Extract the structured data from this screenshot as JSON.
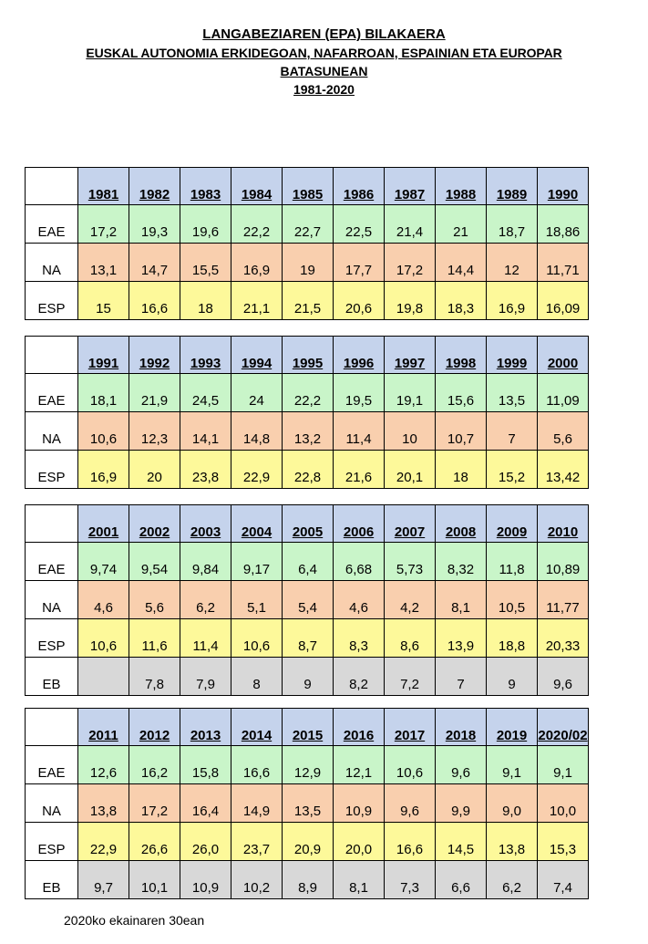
{
  "titles": {
    "line1": "LANGABEZIAREN (EPA) BILAKAERA",
    "line2": "EUSKAL AUTONOMIA ERKIDEGOAN, NAFARROAN, ESPAINIAN ETA EUROPAR",
    "line3": "BATASUNEAN",
    "line4": "1981-2020"
  },
  "tables": [
    {
      "years": [
        "1981",
        "1982",
        "1983",
        "1984",
        "1985",
        "1986",
        "1987",
        "1988",
        "1989",
        "1990"
      ],
      "rows": [
        {
          "label": "EAE",
          "values": [
            "17,2",
            "19,3",
            "19,6",
            "22,2",
            "22,7",
            "22,5",
            "21,4",
            "21",
            "18,7",
            "18,86"
          ]
        },
        {
          "label": "NA",
          "values": [
            "13,1",
            "14,7",
            "15,5",
            "16,9",
            "19",
            "17,7",
            "17,2",
            "14,4",
            "12",
            "11,71"
          ]
        },
        {
          "label": "ESP",
          "values": [
            "15",
            "16,6",
            "18",
            "21,1",
            "21,5",
            "20,6",
            "19,8",
            "18,3",
            "16,9",
            "16,09"
          ]
        }
      ]
    },
    {
      "years": [
        "1991",
        "1992",
        "1993",
        "1994",
        "1995",
        "1996",
        "1997",
        "1998",
        "1999",
        "2000"
      ],
      "rows": [
        {
          "label": "EAE",
          "values": [
            "18,1",
            "21,9",
            "24,5",
            "24",
            "22,2",
            "19,5",
            "19,1",
            "15,6",
            "13,5",
            "11,09"
          ]
        },
        {
          "label": "NA",
          "values": [
            "10,6",
            "12,3",
            "14,1",
            "14,8",
            "13,2",
            "11,4",
            "10",
            "10,7",
            "7",
            "5,6"
          ]
        },
        {
          "label": "ESP",
          "values": [
            "16,9",
            "20",
            "23,8",
            "22,9",
            "22,8",
            "21,6",
            "20,1",
            "18",
            "15,2",
            "13,42"
          ]
        }
      ]
    },
    {
      "years": [
        "2001",
        "2002",
        "2003",
        "2004",
        "2005",
        "2006",
        "2007",
        "2008",
        "2009",
        "2010"
      ],
      "rows": [
        {
          "label": "EAE",
          "values": [
            "9,74",
            "9,54",
            "9,84",
            "9,17",
            "6,4",
            "6,68",
            "5,73",
            "8,32",
            "11,8",
            "10,89"
          ]
        },
        {
          "label": "NA",
          "values": [
            "4,6",
            "5,6",
            "6,2",
            "5,1",
            "5,4",
            "4,6",
            "4,2",
            "8,1",
            "10,5",
            "11,77"
          ]
        },
        {
          "label": "ESP",
          "values": [
            "10,6",
            "11,6",
            "11,4",
            "10,6",
            "8,7",
            "8,3",
            "8,6",
            "13,9",
            "18,8",
            "20,33"
          ]
        },
        {
          "label": "EB",
          "values": [
            "",
            "7,8",
            "7,9",
            "8",
            "9",
            "8,2",
            "7,2",
            "7",
            "9",
            "9,6"
          ]
        }
      ]
    },
    {
      "years": [
        "2011",
        "2012",
        "2013",
        "2014",
        "2015",
        "2016",
        "2017",
        "2018",
        "2019",
        "2020/02"
      ],
      "rows": [
        {
          "label": "EAE",
          "values": [
            "12,6",
            "16,2",
            "15,8",
            "16,6",
            "12,9",
            "12,1",
            "10,6",
            "9,6",
            "9,1",
            "9,1"
          ]
        },
        {
          "label": "NA",
          "values": [
            "13,8",
            "17,2",
            "16,4",
            "14,9",
            "13,5",
            "10,9",
            "9,6",
            "9,9",
            "9,0",
            "10,0"
          ]
        },
        {
          "label": "ESP",
          "values": [
            "22,9",
            "26,6",
            "26,0",
            "23,7",
            "20,9",
            "20,0",
            "16,6",
            "14,5",
            "13,8",
            "15,3"
          ]
        },
        {
          "label": "EB",
          "values": [
            "9,7",
            "10,1",
            "10,9",
            "10,2",
            "8,9",
            "8,1",
            "7,3",
            "6,6",
            "6,2",
            "7,4"
          ]
        }
      ]
    }
  ],
  "footer": "2020ko ekainaren 30ean"
}
